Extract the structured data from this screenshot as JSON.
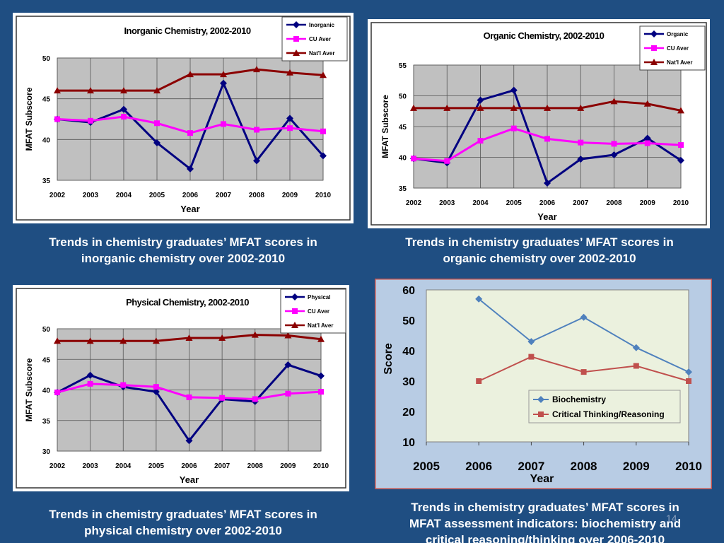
{
  "slide_number": "14",
  "colors": {
    "background": "#1f4e82",
    "inorganic": "#000080",
    "cu": "#ff00ff",
    "natl": "#8b0000",
    "biochem": "#4f81bd",
    "critical": "#c0504d"
  },
  "captions": {
    "inorganic": [
      "Trends in chemistry graduates’ MFAT scores in",
      "inorganic chemistry over 2002-2010"
    ],
    "organic": [
      "Trends in chemistry graduates’ MFAT scores in",
      "organic chemistry over 2002-2010"
    ],
    "physical": [
      "Trends in chemistry graduates’ MFAT scores in",
      "physical  chemistry over 2002-2010"
    ],
    "mfat": [
      "Trends in chemistry graduates’ MFAT scores in",
      "MFAT assessment indicators: biochemistry and",
      "critical reasoning/thinking over 2006-2010"
    ]
  },
  "chart_data": [
    {
      "type": "line",
      "title": "Inorganic Chemistry, 2002-2010",
      "xlabel": "Year",
      "ylabel": "MFAT Subscore",
      "categories": [
        "2002",
        "2003",
        "2004",
        "2005",
        "2006",
        "2007",
        "2008",
        "2009",
        "2010"
      ],
      "ylim": [
        35,
        50
      ],
      "yticks": [
        35,
        40,
        45,
        50
      ],
      "grid": true,
      "legend": "top-right",
      "series": [
        {
          "name": "Inorganic",
          "values": [
            42.5,
            42.1,
            43.7,
            39.6,
            36.4,
            46.9,
            37.4,
            42.6,
            38.0
          ]
        },
        {
          "name": "CU Aver",
          "values": [
            42.5,
            42.3,
            42.8,
            42.0,
            40.8,
            41.9,
            41.2,
            41.4,
            41.0
          ]
        },
        {
          "name": "Nat'l Aver",
          "values": [
            46.0,
            46.0,
            46.0,
            46.0,
            48.0,
            48.0,
            48.6,
            48.2,
            47.9
          ]
        }
      ]
    },
    {
      "type": "line",
      "title": "Organic Chemistry, 2002-2010",
      "xlabel": "Year",
      "ylabel": "MFAT Subscore",
      "categories": [
        "2002",
        "2003",
        "2004",
        "2005",
        "2006",
        "2007",
        "2008",
        "2009",
        "2010"
      ],
      "ylim": [
        35,
        55
      ],
      "yticks": [
        35,
        40,
        45,
        50,
        55
      ],
      "grid": true,
      "legend": "top-right",
      "series": [
        {
          "name": "Organic",
          "values": [
            39.8,
            39.1,
            49.3,
            50.9,
            35.8,
            39.7,
            40.4,
            43.1,
            39.5
          ]
        },
        {
          "name": "CU Aver",
          "values": [
            39.8,
            39.4,
            42.7,
            44.7,
            43.0,
            42.4,
            42.2,
            42.3,
            42.0
          ]
        },
        {
          "name": "Nat'l Aver",
          "values": [
            48.0,
            48.0,
            48.0,
            48.0,
            48.0,
            48.0,
            49.1,
            48.7,
            47.6
          ]
        }
      ]
    },
    {
      "type": "line",
      "title": "Physical Chemistry, 2002-2010",
      "xlabel": "Year",
      "ylabel": "MFAT Subscore",
      "categories": [
        "2002",
        "2003",
        "2004",
        "2005",
        "2006",
        "2007",
        "2008",
        "2009",
        "2010"
      ],
      "ylim": [
        30,
        50
      ],
      "yticks": [
        30,
        35,
        40,
        45,
        50
      ],
      "grid": true,
      "legend": "top-right",
      "series": [
        {
          "name": "Physical",
          "values": [
            39.6,
            42.4,
            40.5,
            39.7,
            31.7,
            38.5,
            38.1,
            44.1,
            42.3
          ]
        },
        {
          "name": "CU Aver",
          "values": [
            39.6,
            41.0,
            40.8,
            40.5,
            38.8,
            38.7,
            38.5,
            39.4,
            39.7
          ]
        },
        {
          "name": "Nat'l Aver",
          "values": [
            48.0,
            48.0,
            48.0,
            48.0,
            48.5,
            48.5,
            49.0,
            48.9,
            48.3
          ]
        }
      ]
    },
    {
      "type": "line",
      "title": "",
      "xlabel": "Year",
      "ylabel": "Score",
      "categories": [
        "2005",
        "2006",
        "2007",
        "2008",
        "2009",
        "2010"
      ],
      "ylim": [
        10,
        60
      ],
      "yticks": [
        10,
        20,
        30,
        40,
        50,
        60
      ],
      "grid": false,
      "legend": "center-right",
      "series": [
        {
          "name": "Biochemistry",
          "values": [
            null,
            57,
            43,
            51,
            41,
            33
          ]
        },
        {
          "name": "Critical Thinking/Reasoning",
          "values": [
            null,
            30,
            38,
            33,
            35,
            30
          ]
        }
      ]
    }
  ]
}
